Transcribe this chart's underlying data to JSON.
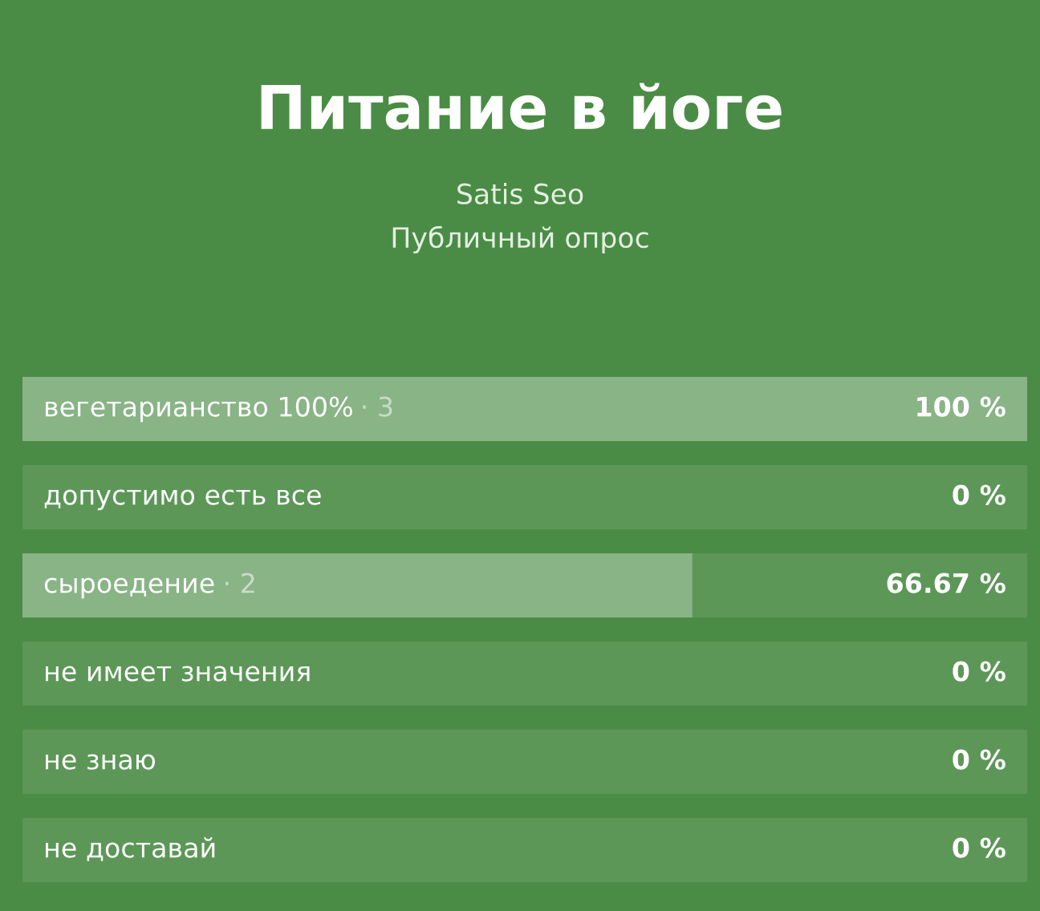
{
  "chart_data": {
    "type": "bar",
    "orientation": "horizontal",
    "title": "Питание в йоге",
    "subtitle": "Satis Seo\nПубличный опрос",
    "categories": [
      "вегетарианство 100%",
      "допустимо есть все",
      "сыроедение",
      "не имеет значения",
      "не знаю",
      "не доставай"
    ],
    "values": [
      100,
      0,
      66.67,
      0,
      0,
      0
    ],
    "value_labels": [
      "100 %",
      "0 %",
      "66.67 %",
      "0 %",
      "0 %",
      "0 %"
    ],
    "color": "#89b486",
    "xlim": [
      0,
      100
    ],
    "annotations": [
      {
        "text": "· 3",
        "y": "вегетарианство 100%"
      },
      {
        "text": "· 2",
        "y": "сыроедение"
      }
    ]
  }
}
